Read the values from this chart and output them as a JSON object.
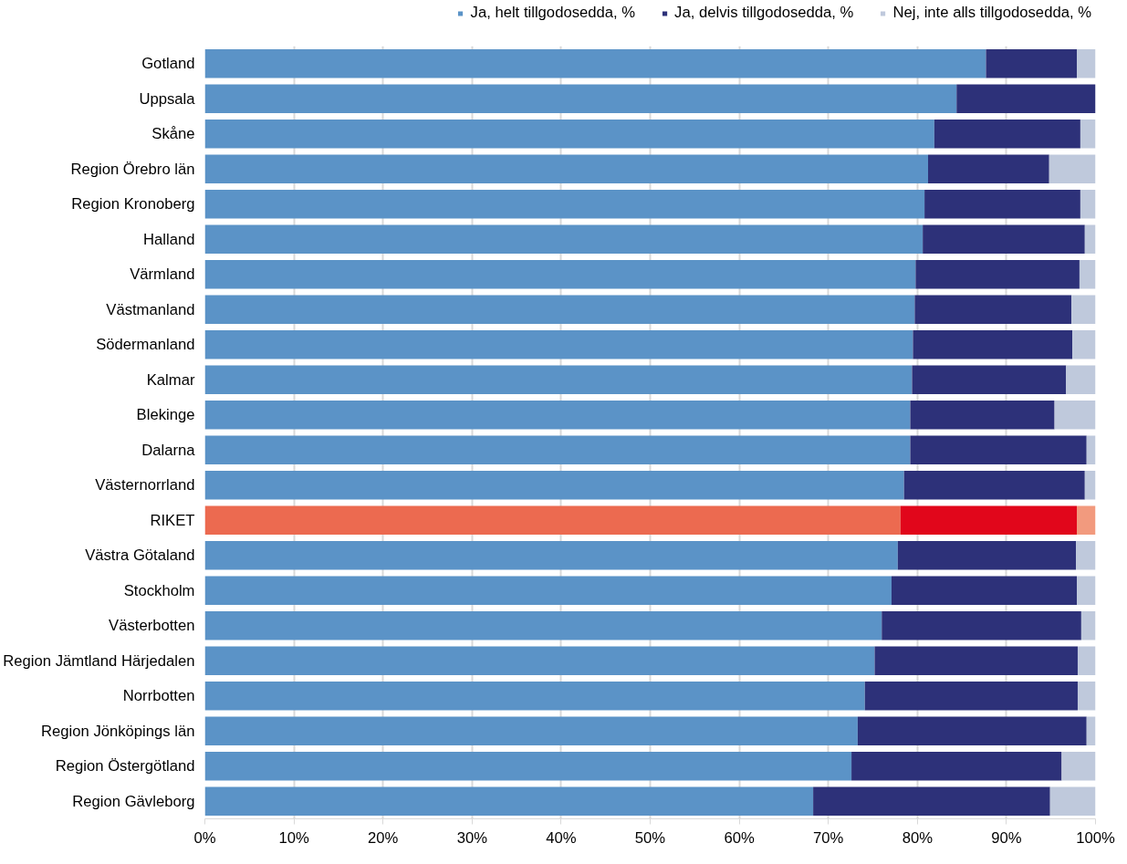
{
  "chart_data": {
    "type": "bar",
    "orientation": "horizontal",
    "stacked": true,
    "categories": [
      "Gotland",
      "Uppsala",
      "Skåne",
      "Region Örebro län",
      "Region Kronoberg",
      "Halland",
      "Värmland",
      "Västmanland",
      "Södermanland",
      "Kalmar",
      "Blekinge",
      "Dalarna",
      "Västernorrland",
      "RIKET",
      "Västra Götaland",
      "Stockholm",
      "Västerbotten",
      "Region Jämtland Härjedalen",
      "Norrbotten",
      "Region Jönköpings län",
      "Region Östergötland",
      "Region Gävleborg"
    ],
    "series": [
      {
        "name": "Ja, helt tillgodosedda, %",
        "color": "#5b93c7",
        "colors": [
          "#5b93c7",
          "#5b93c7",
          "#5b93c7",
          "#5b93c7",
          "#5b93c7",
          "#5b93c7",
          "#5b93c7",
          "#5b93c7",
          "#5b93c7",
          "#5b93c7",
          "#5b93c7",
          "#5b93c7",
          "#5b93c7",
          "#ec6a50",
          "#5b93c7",
          "#5b93c7",
          "#5b93c7",
          "#5b93c7",
          "#5b93c7",
          "#5b93c7",
          "#5b93c7",
          "#5b93c7"
        ],
        "values": [
          87.7,
          84.4,
          81.9,
          81.2,
          80.8,
          80.6,
          79.8,
          79.7,
          79.5,
          79.4,
          79.2,
          79.2,
          78.5,
          78.1,
          77.8,
          77.1,
          76.0,
          75.2,
          74.1,
          73.3,
          72.6,
          68.3
        ]
      },
      {
        "name": "Ja, delvis tillgodosedda, %",
        "color": "#2d3179",
        "colors": [
          "#2d3179",
          "#2d3179",
          "#2d3179",
          "#2d3179",
          "#2d3179",
          "#2d3179",
          "#2d3179",
          "#2d3179",
          "#2d3179",
          "#2d3179",
          "#2d3179",
          "#2d3179",
          "#2d3179",
          "#e1061b",
          "#2d3179",
          "#2d3179",
          "#2d3179",
          "#2d3179",
          "#2d3179",
          "#2d3179",
          "#2d3179",
          "#2d3179"
        ],
        "values": [
          10.2,
          15.6,
          16.4,
          13.6,
          17.5,
          18.2,
          18.4,
          17.6,
          17.9,
          17.3,
          16.2,
          19.8,
          20.3,
          19.8,
          20.0,
          20.8,
          22.4,
          22.8,
          23.9,
          25.7,
          23.6,
          26.6
        ]
      },
      {
        "name": "Nej, inte alls tillgodosedda, %",
        "color": "#bfc9dc",
        "colors": [
          "#bfc9dc",
          "#bfc9dc",
          "#bfc9dc",
          "#bfc9dc",
          "#bfc9dc",
          "#bfc9dc",
          "#bfc9dc",
          "#bfc9dc",
          "#bfc9dc",
          "#bfc9dc",
          "#bfc9dc",
          "#bfc9dc",
          "#bfc9dc",
          "#f29a7e",
          "#bfc9dc",
          "#bfc9dc",
          "#bfc9dc",
          "#bfc9dc",
          "#bfc9dc",
          "#bfc9dc",
          "#bfc9dc",
          "#bfc9dc"
        ],
        "values": [
          2.1,
          0,
          1.7,
          5.2,
          1.7,
          1.2,
          1.8,
          2.7,
          2.6,
          3.3,
          4.6,
          1.0,
          1.2,
          2.1,
          2.2,
          2.1,
          1.6,
          2.0,
          2.0,
          1.0,
          3.8,
          5.1
        ]
      }
    ],
    "xlim": [
      0,
      100
    ],
    "xticks": [
      {
        "value": 0,
        "label": "0%"
      },
      {
        "value": 10,
        "label": "10%"
      },
      {
        "value": 20,
        "label": "20%"
      },
      {
        "value": 30,
        "label": "30%"
      },
      {
        "value": 40,
        "label": "40%"
      },
      {
        "value": 50,
        "label": "50%"
      },
      {
        "value": 60,
        "label": "60%"
      },
      {
        "value": 70,
        "label": "70%"
      },
      {
        "value": 80,
        "label": "80%"
      },
      {
        "value": 90,
        "label": "90%"
      },
      {
        "value": 100,
        "label": "100%"
      }
    ],
    "grid": "x",
    "legend": "top right"
  }
}
